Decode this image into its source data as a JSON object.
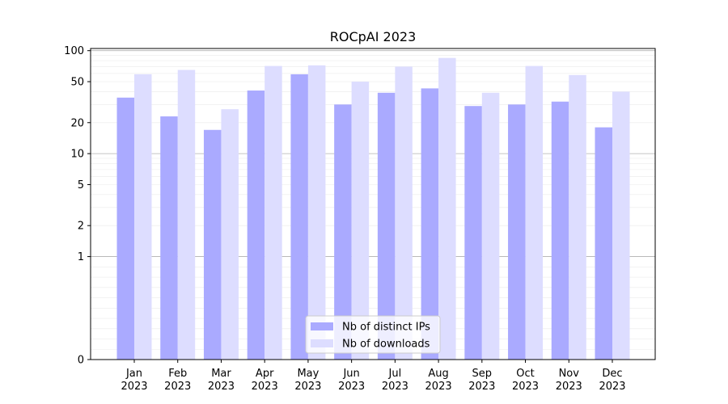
{
  "chart_data": {
    "type": "bar",
    "title": "ROCpAI 2023",
    "xlabel": "",
    "ylabel": "",
    "yscale": "symlog",
    "ylim": [
      0,
      105
    ],
    "yticks": [
      0,
      1,
      2,
      5,
      10,
      20,
      50,
      100
    ],
    "categories": [
      [
        "Jan",
        "2023"
      ],
      [
        "Feb",
        "2023"
      ],
      [
        "Mar",
        "2023"
      ],
      [
        "Apr",
        "2023"
      ],
      [
        "May",
        "2023"
      ],
      [
        "Jun",
        "2023"
      ],
      [
        "Jul",
        "2023"
      ],
      [
        "Aug",
        "2023"
      ],
      [
        "Sep",
        "2023"
      ],
      [
        "Oct",
        "2023"
      ],
      [
        "Nov",
        "2023"
      ],
      [
        "Dec",
        "2023"
      ]
    ],
    "series": [
      {
        "name": "Nb of distinct IPs",
        "color": "#aaaaff",
        "values": [
          35,
          23,
          17,
          41,
          59,
          30,
          39,
          43,
          29,
          30,
          32,
          18
        ]
      },
      {
        "name": "Nb of downloads",
        "color": "#ddddff",
        "values": [
          59,
          65,
          27,
          71,
          72,
          50,
          70,
          85,
          39,
          71,
          58,
          40
        ]
      }
    ],
    "grid": true,
    "legend_position": "bottom-center"
  }
}
